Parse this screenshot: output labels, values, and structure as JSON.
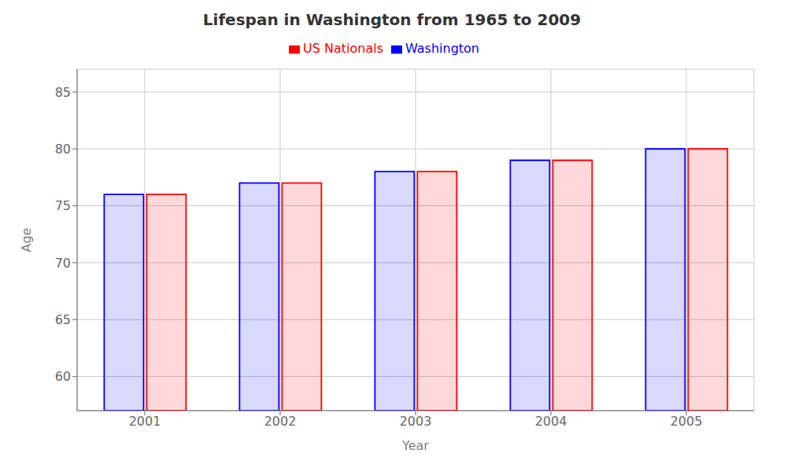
{
  "chart_data": {
    "type": "bar",
    "title": "Lifespan in Washington from 1965 to 2009",
    "xlabel": "Year",
    "ylabel": "Age",
    "categories": [
      "2001",
      "2002",
      "2003",
      "2004",
      "2005"
    ],
    "series": [
      {
        "name": "Washington",
        "color": "#0000ff",
        "values": [
          76,
          77,
          78,
          79,
          80
        ]
      },
      {
        "name": "US Nationals",
        "color": "#ff0000",
        "values": [
          76,
          77,
          78,
          79,
          80
        ]
      }
    ],
    "ylim": [
      57,
      87
    ],
    "yticks": [
      60,
      65,
      70,
      75,
      80,
      85
    ],
    "grid": true,
    "legend": "top"
  }
}
